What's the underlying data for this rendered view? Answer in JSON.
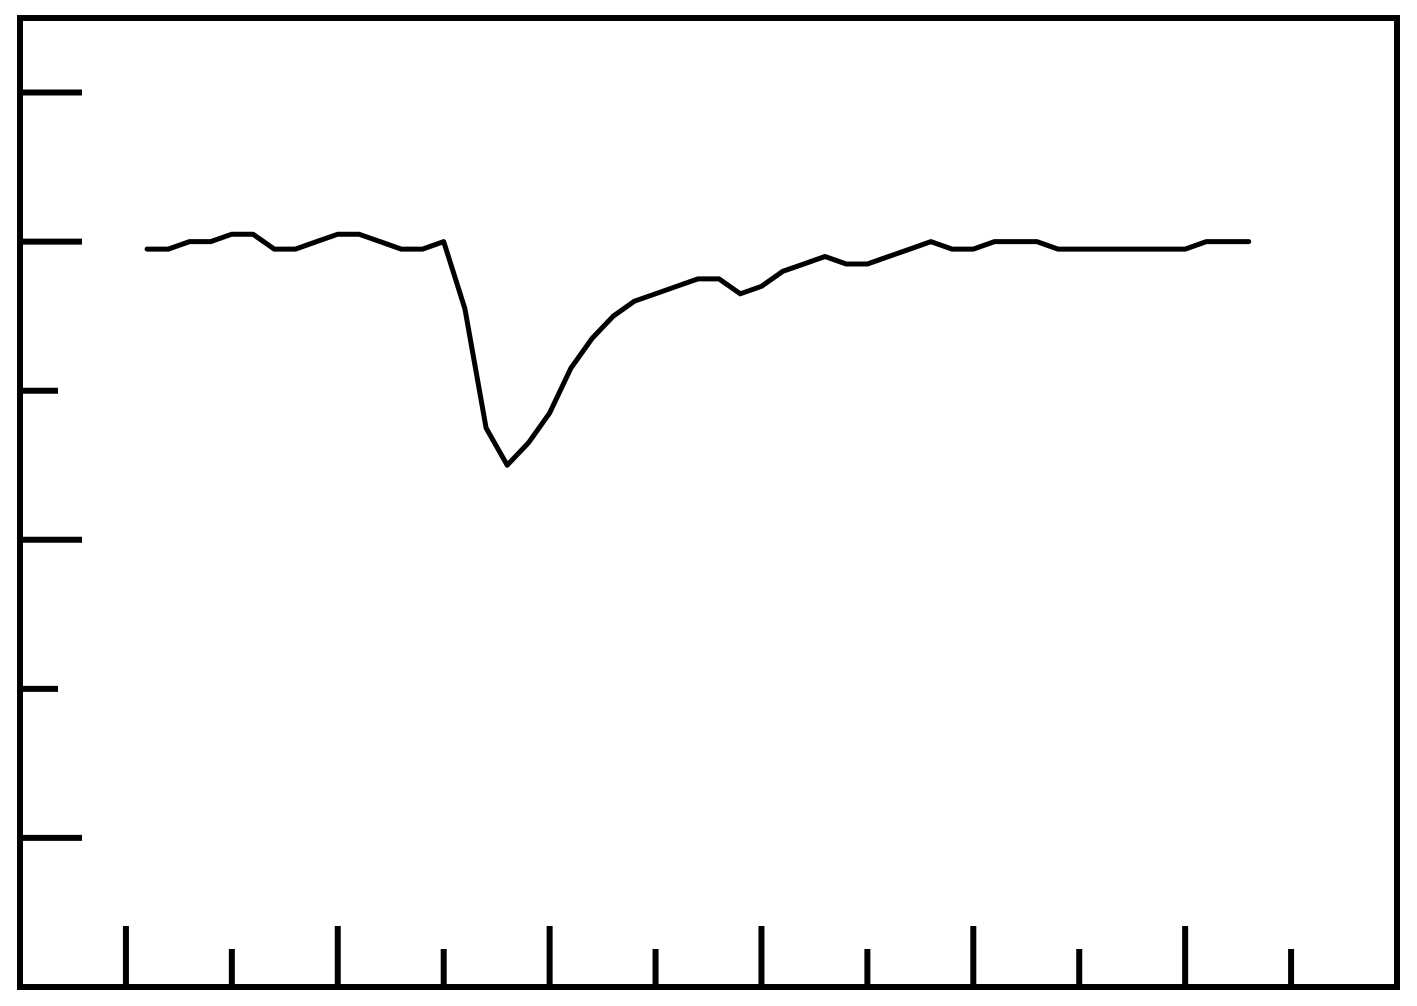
{
  "chart_data": {
    "type": "line",
    "title": "",
    "xlabel": "",
    "ylabel": "",
    "xlim": [
      -1,
      12
    ],
    "ylim": [
      0,
      6.5
    ],
    "grid": false,
    "legend": "none",
    "x_major_ticks": [
      0,
      2,
      4,
      6,
      8,
      10
    ],
    "x_minor_ticks": [
      1,
      3,
      5,
      7,
      9,
      11
    ],
    "y_major_ticks": [
      1,
      3,
      5,
      6
    ],
    "y_minor_ticks": [
      2,
      4
    ],
    "line_color": "#000000",
    "series": [
      {
        "x": [
          0.2,
          0.4,
          0.6,
          0.8,
          1.0,
          1.2,
          1.4,
          1.6,
          1.8,
          2.0,
          2.2,
          2.4,
          2.6,
          2.8,
          3.0,
          3.2,
          3.4,
          3.6,
          3.8,
          4.0,
          4.2,
          4.4,
          4.6,
          4.8,
          5.0,
          5.2,
          5.4,
          5.6,
          5.8,
          6.0,
          6.2,
          6.4,
          6.6,
          6.8,
          7.0,
          7.2,
          7.4,
          7.6,
          7.8,
          8.0,
          8.2,
          8.4,
          8.6,
          8.8,
          9.0,
          9.2,
          9.4,
          9.6,
          9.8,
          10.0,
          10.2,
          10.4,
          10.6
        ],
        "values": [
          4.95,
          4.95,
          5.0,
          5.0,
          5.05,
          5.05,
          4.95,
          4.95,
          5.0,
          5.05,
          5.05,
          5.0,
          4.95,
          4.95,
          5.0,
          4.55,
          3.75,
          3.5,
          3.65,
          3.85,
          4.15,
          4.35,
          4.5,
          4.6,
          4.65,
          4.7,
          4.75,
          4.75,
          4.65,
          4.7,
          4.8,
          4.85,
          4.9,
          4.85,
          4.85,
          4.9,
          4.95,
          5.0,
          4.95,
          4.95,
          5.0,
          5.0,
          5.0,
          4.95,
          4.95,
          4.95,
          4.95,
          4.95,
          4.95,
          4.95,
          5.0,
          5.0,
          5.0
        ]
      }
    ]
  }
}
